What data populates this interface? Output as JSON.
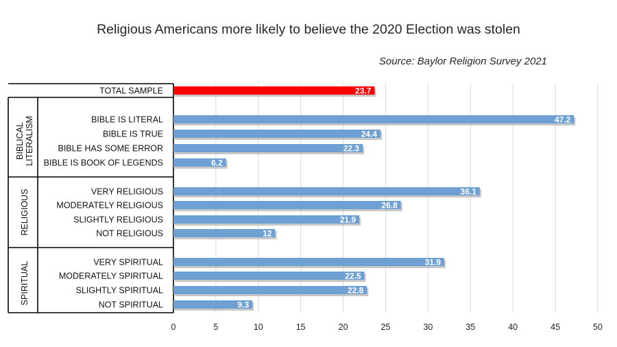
{
  "chart_data": {
    "type": "bar",
    "orientation": "horizontal",
    "title": "Religious Americans more likely to believe the 2020 Election was stolen",
    "subtitle": "Source: Baylor Religion Survey 2021",
    "xlim": [
      0,
      50
    ],
    "x_ticks": [
      "0",
      "5",
      "10",
      "15",
      "20",
      "25",
      "30",
      "35",
      "40",
      "45",
      "50"
    ],
    "grid": true,
    "colors": {
      "highlight": "#ff0000",
      "bar": "#6fa0d4",
      "grid": "#d9d9d9",
      "frame": "#000000"
    },
    "groups": [
      {
        "name": "",
        "rows": [
          {
            "label": "TOTAL SAMPLE",
            "value": 23.7,
            "value_label": "23.7",
            "highlight": true
          }
        ]
      },
      {
        "name": "BIBLICAL LITERALISM",
        "name_lines": [
          "BIBLICAL",
          "LITERALISM"
        ],
        "rows": [
          {
            "label": "BIBLE IS LITERAL",
            "value": 47.2,
            "value_label": "47.2"
          },
          {
            "label": "BIBLE IS TRUE",
            "value": 24.4,
            "value_label": "24.4"
          },
          {
            "label": "BIBLE HAS SOME ERROR",
            "value": 22.3,
            "value_label": "22.3"
          },
          {
            "label": "BIBLE IS BOOK OF LEGENDS",
            "value": 6.2,
            "value_label": "6.2"
          }
        ]
      },
      {
        "name": "RELIGIOUS",
        "name_lines": [
          "RELIGIOUS"
        ],
        "rows": [
          {
            "label": "VERY RELIGIOUS",
            "value": 36.1,
            "value_label": "36.1"
          },
          {
            "label": "MODERATELY RELIGIOUS",
            "value": 26.8,
            "value_label": "26.8"
          },
          {
            "label": "SLIGHTLY RELIGIOUS",
            "value": 21.9,
            "value_label": "21.9"
          },
          {
            "label": "NOT RELIGIOUS",
            "value": 12,
            "value_label": "12"
          }
        ]
      },
      {
        "name": "SPIRITUAL",
        "name_lines": [
          "SPIRITUAL"
        ],
        "rows": [
          {
            "label": "VERY SPIRITUAL",
            "value": 31.9,
            "value_label": "31.9"
          },
          {
            "label": "MODERATELY SPIRITUAL",
            "value": 22.5,
            "value_label": "22.5"
          },
          {
            "label": "SLIGHTLY SPIRITUAL",
            "value": 22.8,
            "value_label": "22.8"
          },
          {
            "label": "NOT SPIRITUAL",
            "value": 9.3,
            "value_label": "9.3"
          }
        ]
      }
    ]
  }
}
